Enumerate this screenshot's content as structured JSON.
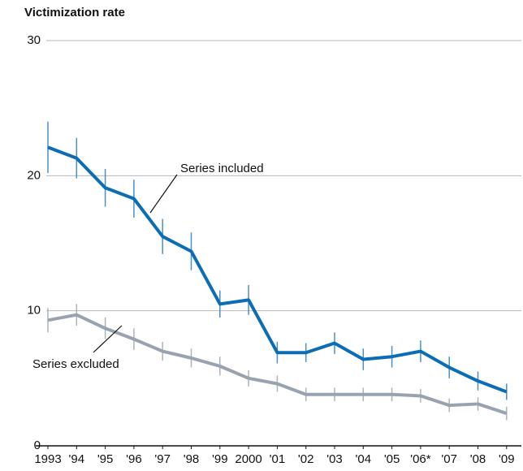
{
  "chart_data": {
    "type": "line",
    "title": "Victimization rate",
    "categories": [
      "1993",
      "'94",
      "'95",
      "'96",
      "'97",
      "'98",
      "'99",
      "2000",
      "'01",
      "'02",
      "'03",
      "'04",
      "'05",
      "'06*",
      "'07",
      "'08",
      "'09"
    ],
    "series": [
      {
        "name": "Series included",
        "color": "#0a6db5",
        "errorcolor": "#4a90c8",
        "values": [
          22.1,
          21.3,
          19.1,
          18.3,
          15.5,
          14.4,
          10.5,
          10.8,
          6.9,
          6.9,
          7.6,
          6.4,
          6.6,
          7.0,
          5.8,
          4.8,
          4.0
        ],
        "errors": [
          1.9,
          1.5,
          1.4,
          1.4,
          1.3,
          1.4,
          1.0,
          1.1,
          0.8,
          0.7,
          0.8,
          0.8,
          0.8,
          0.8,
          0.8,
          0.7,
          0.6
        ]
      },
      {
        "name": "Series excluded",
        "color": "#98a3af",
        "errorcolor": "#aab3bc",
        "values": [
          9.3,
          9.7,
          8.7,
          7.9,
          7.0,
          6.5,
          5.9,
          5.0,
          4.6,
          3.8,
          3.8,
          3.8,
          3.8,
          3.7,
          3.0,
          3.1,
          2.4
        ],
        "errors": [
          0.9,
          0.8,
          0.8,
          0.8,
          0.7,
          0.7,
          0.7,
          0.6,
          0.6,
          0.5,
          0.5,
          0.5,
          0.5,
          0.5,
          0.5,
          0.5,
          0.5
        ]
      }
    ],
    "ylim": [
      0,
      30
    ],
    "yticks": [
      0,
      10,
      20,
      30
    ],
    "grid": true
  }
}
